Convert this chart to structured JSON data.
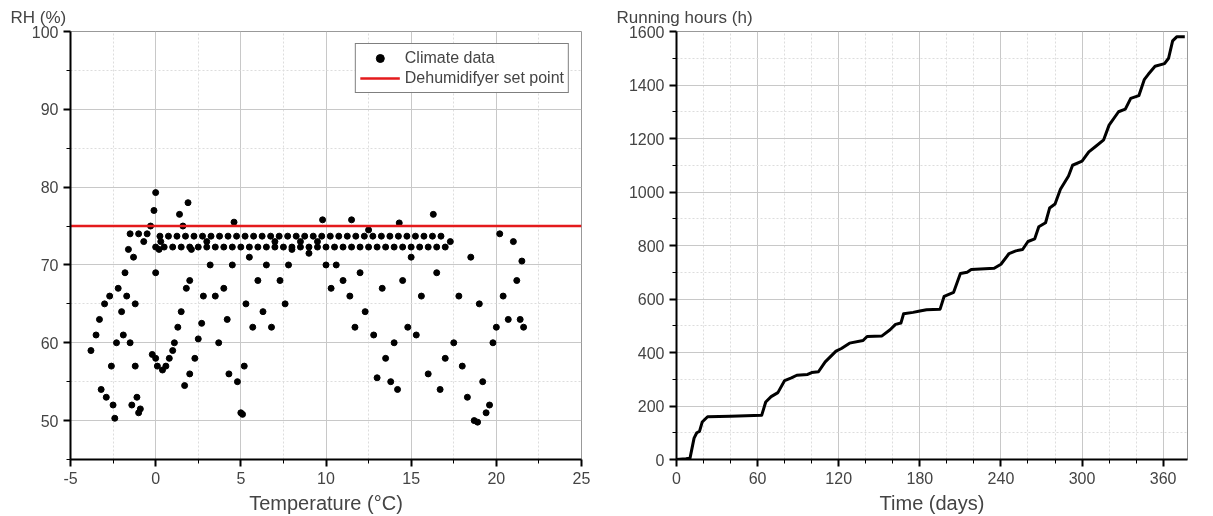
{
  "chart_data": [
    {
      "type": "scatter",
      "ylabel": "RH (%)",
      "xlabel": "Temperature (°C)",
      "xlim": [
        -5,
        25
      ],
      "ylim": [
        45,
        100
      ],
      "xticks": [
        -5,
        {
          "value": -2.5,
          "label": null
        },
        0,
        {
          "value": 2.5,
          "label": null
        },
        5,
        {
          "value": 7.5,
          "label": null
        },
        10,
        {
          "value": 12.5,
          "label": null
        },
        15,
        {
          "value": 17.5,
          "label": null
        },
        20,
        {
          "value": 22.5,
          "label": null
        },
        25
      ],
      "yticks": [
        {
          "value": 45,
          "label": null
        },
        50,
        {
          "value": 55,
          "label": null
        },
        60,
        {
          "value": 65,
          "label": null
        },
        70,
        {
          "value": 75,
          "label": null
        },
        80,
        {
          "value": 85,
          "label": null
        },
        90,
        {
          "value": 95,
          "label": null
        },
        100
      ],
      "grid": true,
      "legend": "top right",
      "marker": "circle",
      "series": [
        {
          "name": "Climate data",
          "color": "#000000",
          "x": [
            -3.8,
            -3.5,
            -3.3,
            -3.2,
            -3.0,
            -2.9,
            -2.7,
            -2.6,
            -2.5,
            -2.4,
            -2.3,
            -2.2,
            -2.0,
            -1.9,
            -1.8,
            -1.7,
            -1.6,
            -1.5,
            -1.5,
            -1.4,
            -1.3,
            -1.2,
            -1.2,
            -1.1,
            -1.0,
            -0.9,
            -1.0,
            -0.7,
            -0.5,
            -0.3,
            -0.2,
            -0.1,
            0.0,
            0.0,
            0.0,
            0.1,
            0.2,
            0.3,
            0.4,
            0.6,
            0.8,
            1.0,
            1.1,
            1.3,
            1.4,
            1.5,
            1.6,
            1.8,
            1.9,
            2.0,
            2.1,
            1.7,
            2.0,
            2.3,
            2.5,
            2.8,
            2.7,
            3.0,
            3.2,
            3.5,
            3.7,
            4.0,
            4.2,
            4.3,
            4.5,
            4.6,
            4.8,
            5.0,
            5.1,
            5.2,
            5.3,
            5.5,
            5.7,
            6.0,
            6.3,
            6.5,
            6.8,
            7.0,
            7.3,
            7.6,
            7.8,
            8.0,
            8.5,
            9.0,
            9.5,
            9.8,
            10.0,
            10.3,
            10.6,
            11.0,
            11.4,
            11.5,
            11.7,
            12.0,
            12.3,
            12.5,
            12.8,
            13.0,
            13.3,
            13.5,
            13.8,
            14.0,
            14.2,
            14.3,
            14.5,
            14.8,
            15.0,
            15.3,
            15.6,
            16.0,
            16.3,
            16.5,
            16.7,
            17.0,
            17.3,
            17.5,
            17.8,
            18.0,
            18.3,
            18.5,
            18.7,
            18.9,
            19.0,
            19.2,
            19.4,
            19.6,
            19.8,
            20.0,
            20.2,
            20.4,
            20.7,
            21.0,
            21.2,
            21.4,
            21.5,
            21.6,
            0.0,
            0.5,
            1.0,
            1.5,
            2.0,
            2.5,
            3.0,
            3.5,
            4.0,
            4.5,
            5.0,
            5.5,
            6.0,
            6.5,
            7.0,
            7.5,
            8.0,
            8.5,
            9.0,
            9.5,
            10.0,
            10.5,
            11.0,
            11.5,
            12.0,
            12.5,
            13.0,
            13.5,
            14.0,
            14.5,
            15.0,
            15.5,
            16.0,
            16.5,
            17.0,
            0.25,
            0.75,
            1.25,
            1.75,
            2.25,
            2.75,
            3.25,
            3.75,
            4.25,
            4.75,
            5.25,
            5.75,
            6.25,
            6.75,
            7.25,
            7.75,
            8.25,
            8.75,
            9.25,
            9.75,
            10.25,
            10.75,
            11.25,
            11.75,
            12.25,
            12.75,
            13.25,
            13.75,
            14.25,
            14.75,
            15.25,
            15.75,
            16.25,
            16.75
          ],
          "values": [
            59,
            61,
            63,
            54,
            65,
            53,
            66,
            57,
            52,
            50.3,
            60,
            67,
            64,
            61,
            69,
            66,
            72,
            74,
            60,
            52,
            71,
            65,
            57,
            53,
            51,
            51.5,
            74,
            73,
            74,
            75,
            58.5,
            77,
            79.3,
            69,
            58,
            57,
            72,
            73,
            56.5,
            57,
            58,
            59,
            60,
            62,
            76.5,
            64,
            75,
            67,
            78,
            68,
            72,
            54.5,
            56,
            58,
            60.5,
            66,
            62.5,
            73,
            70,
            66,
            60,
            67,
            63,
            56,
            70,
            75.5,
            55,
            51,
            50.8,
            57,
            65,
            71,
            62,
            68,
            64,
            70,
            62,
            73,
            68,
            65,
            70,
            72,
            73,
            71.5,
            73,
            75.8,
            70,
            67,
            70,
            68,
            66,
            75.8,
            62,
            69,
            64,
            74.5,
            61,
            55.5,
            67,
            58,
            55,
            60,
            54,
            75.4,
            68,
            62,
            71,
            61,
            66,
            56,
            76.5,
            69,
            54,
            58,
            73,
            60,
            66,
            57,
            53,
            71,
            50,
            49.8,
            65,
            55,
            51,
            52,
            60,
            62,
            74,
            66,
            63,
            73,
            68,
            63,
            70.5,
            62,
            72.3,
            72.3,
            72.3,
            72.3,
            72.3,
            72.3,
            72.3,
            72.3,
            72.3,
            72.3,
            72.3,
            72.3,
            72.3,
            72.3,
            72.3,
            72.3,
            72.3,
            72.3,
            72.3,
            72.3,
            72.3,
            72.3,
            72.3,
            72.3,
            72.3,
            72.3,
            72.3,
            72.3,
            72.3,
            72.3,
            72.3,
            72.3,
            72.3,
            72.3,
            72.3,
            73.7,
            73.7,
            73.7,
            73.7,
            73.7,
            73.7,
            73.7,
            73.7,
            73.7,
            73.7,
            73.7,
            73.7,
            73.7,
            73.7,
            73.7,
            73.7,
            73.7,
            73.7,
            73.7,
            73.7,
            73.7,
            73.7,
            73.7,
            73.7,
            73.7,
            73.7,
            73.7,
            73.7,
            73.7,
            73.7,
            73.7,
            73.7,
            73.7,
            73.7
          ]
        }
      ],
      "ref_lines": [
        {
          "axis": "y",
          "value": 75,
          "label": "Dehumidifyer set point",
          "color": "#e41a1c"
        }
      ]
    },
    {
      "type": "line",
      "ylabel": "Running hours (h)",
      "xlabel": "Time (days)",
      "xlim": [
        0,
        378
      ],
      "ylim": [
        0,
        1600
      ],
      "xticks": [
        0,
        {
          "value": 20,
          "label": null
        },
        {
          "value": 40,
          "label": null
        },
        60,
        {
          "value": 80,
          "label": null
        },
        {
          "value": 100,
          "label": null
        },
        120,
        {
          "value": 140,
          "label": null
        },
        {
          "value": 160,
          "label": null
        },
        180,
        {
          "value": 200,
          "label": null
        },
        {
          "value": 220,
          "label": null
        },
        240,
        {
          "value": 260,
          "label": null
        },
        {
          "value": 280,
          "label": null
        },
        300,
        {
          "value": 320,
          "label": null
        },
        {
          "value": 340,
          "label": null
        },
        360
      ],
      "yticks": [
        0,
        {
          "value": 100,
          "label": null
        },
        200,
        {
          "value": 300,
          "label": null
        },
        400,
        {
          "value": 500,
          "label": null
        },
        600,
        {
          "value": 700,
          "label": null
        },
        800,
        {
          "value": 900,
          "label": null
        },
        1000,
        {
          "value": 1100,
          "label": null
        },
        1200,
        {
          "value": 1300,
          "label": null
        },
        1400,
        {
          "value": 1500,
          "label": null
        },
        1600
      ],
      "grid": true,
      "line_style": "solid",
      "series": [
        {
          "color": "#000000",
          "x": [
            0,
            7,
            10,
            13,
            15,
            17,
            19,
            23,
            40,
            63,
            66,
            70,
            75,
            80,
            85,
            89,
            97,
            100,
            105,
            110,
            118,
            122,
            128,
            138,
            141,
            152,
            158,
            162,
            166,
            168,
            175,
            180,
            185,
            195,
            198,
            205,
            210,
            215,
            218,
            235,
            240,
            246,
            251,
            256,
            260,
            265,
            268,
            273,
            276,
            280,
            284,
            290,
            293,
            300,
            305,
            310,
            316,
            320,
            327,
            332,
            336,
            342,
            346,
            349,
            354,
            361,
            364,
            367,
            370,
            376
          ],
          "values": [
            0,
            3,
            5,
            80,
            100,
            105,
            140,
            160,
            162,
            165,
            215,
            235,
            250,
            295,
            305,
            315,
            318,
            325,
            328,
            365,
            405,
            415,
            435,
            445,
            460,
            462,
            485,
            505,
            510,
            545,
            550,
            555,
            560,
            562,
            610,
            625,
            695,
            700,
            710,
            715,
            730,
            770,
            780,
            785,
            815,
            825,
            870,
            885,
            940,
            955,
            1010,
            1060,
            1100,
            1115,
            1150,
            1170,
            1195,
            1250,
            1300,
            1310,
            1350,
            1360,
            1420,
            1440,
            1470,
            1480,
            1500,
            1565,
            1580,
            1580
          ]
        }
      ]
    }
  ]
}
